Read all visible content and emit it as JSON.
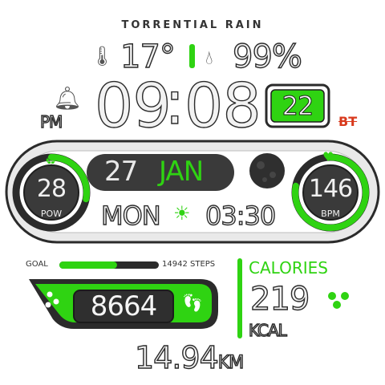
{
  "weather": {
    "condition": "TORRENTIAL RAIN",
    "temperature": "17°",
    "humidity": "99%"
  },
  "time": {
    "hours": "09",
    "minutes": "08",
    "ampm": "PM",
    "seconds": "22"
  },
  "date": {
    "day": "27",
    "month": "JAN",
    "weekday": "MON",
    "sunrise": "03:30"
  },
  "battery": {
    "value": "28",
    "label": "POW",
    "level": 0.28
  },
  "heart": {
    "value": "146",
    "label": "BPM",
    "level": 0.78
  },
  "steps": {
    "goal_label": "GOAL",
    "goal_value": "14942 STEPS",
    "count": "8664",
    "progress": 0.58
  },
  "calories": {
    "title": "CALORIES",
    "value": "219",
    "unit": "KCAL"
  },
  "distance": {
    "value": "14.94",
    "unit": "KM"
  },
  "colors": {
    "accent": "#2fd312",
    "dark": "#2b2b2b",
    "panel": "#3a3a3a"
  }
}
